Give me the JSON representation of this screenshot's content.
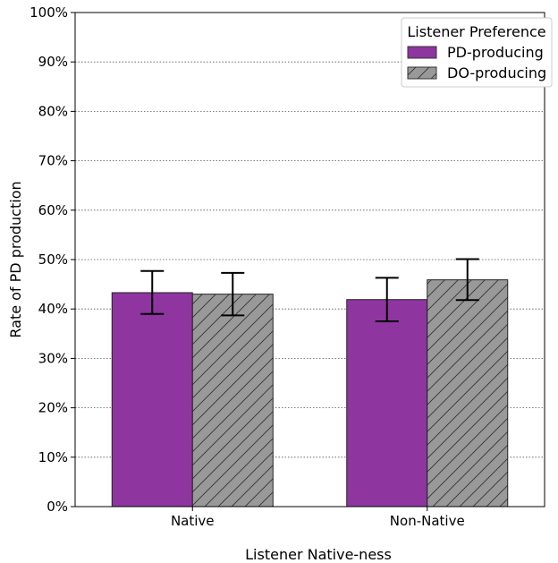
{
  "chart_data": {
    "type": "bar",
    "categories": [
      "Native",
      "Non-Native"
    ],
    "series": [
      {
        "name": "PD-producing",
        "values": [
          43.3,
          41.9
        ],
        "err_low": [
          39.0,
          37.5
        ],
        "err_high": [
          47.7,
          46.3
        ]
      },
      {
        "name": "DO-producing",
        "values": [
          43.0,
          45.9
        ],
        "err_low": [
          38.7,
          41.8
        ],
        "err_high": [
          47.3,
          50.1
        ]
      }
    ],
    "xlabel": "Listener Native-ness",
    "ylabel": "Rate of PD production",
    "ylim": [
      0,
      100
    ],
    "yticks": [
      "0%",
      "10%",
      "20%",
      "30%",
      "40%",
      "50%",
      "60%",
      "70%",
      "80%",
      "90%",
      "100%"
    ],
    "legend": {
      "title": "Listener Preference",
      "position": "top-right"
    },
    "grid": "horizontal dotted",
    "colors": {
      "PD-producing": "#8e35a0",
      "DO-producing": "#999999"
    },
    "patterns": {
      "PD-producing": "solid",
      "DO-producing": "diagonal hatch"
    }
  }
}
